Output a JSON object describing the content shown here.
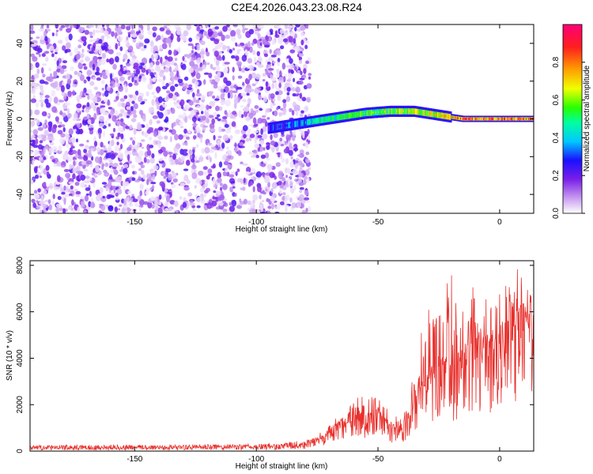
{
  "title": "C2E4.2026.043.23.08.R24",
  "colorbar": {
    "label": "Normalized spectral amplitude",
    "ticks": [
      "0.0",
      "0.2",
      "0.4",
      "0.6",
      "0.8"
    ]
  },
  "chart_data": [
    {
      "type": "heatmap",
      "xlabel": "Height of straight line (km)",
      "ylabel": "Frequency (Hz)",
      "xlim": [
        -193,
        14
      ],
      "ylim": [
        -50,
        50
      ],
      "x_ticks": [
        "-150",
        "-100",
        "-50",
        "0"
      ],
      "y_ticks": [
        "-40",
        "-20",
        "0",
        "20",
        "40"
      ],
      "colormap": "purple-blue-cyan-green-yellow-red-magenta",
      "noise_region_x": [
        -193,
        -78
      ],
      "signal_trace": {
        "x": [
          -95,
          -85,
          -75,
          -65,
          -55,
          -45,
          -35,
          -25,
          -15,
          -5,
          5,
          14
        ],
        "frequency_hz": [
          -5,
          -3,
          -1,
          1,
          3,
          4,
          4,
          2,
          0,
          0,
          0,
          0
        ],
        "amplitude": [
          0.2,
          0.3,
          0.5,
          0.55,
          0.6,
          0.65,
          0.7,
          0.75,
          0.9,
          0.9,
          0.9,
          0.85
        ]
      }
    },
    {
      "type": "line",
      "xlabel": "Height of straight line (km)",
      "ylabel": "SNR (10 * v/v)",
      "xlim": [
        -193,
        14
      ],
      "ylim": [
        0,
        8200
      ],
      "x_ticks": [
        "-150",
        "-100",
        "-50",
        "0"
      ],
      "y_ticks": [
        "0",
        "2000",
        "4000",
        "6000",
        "8000"
      ],
      "color": "#e8302c",
      "series": [
        {
          "name": "SNR",
          "x": [
            -193,
            -180,
            -160,
            -140,
            -120,
            -100,
            -90,
            -80,
            -75,
            -70,
            -65,
            -60,
            -55,
            -50,
            -45,
            -40,
            -35,
            -30,
            -25,
            -20,
            -15,
            -10,
            -5,
            0,
            5,
            10,
            14
          ],
          "y_base": [
            150,
            150,
            160,
            160,
            170,
            180,
            200,
            280,
            450,
            750,
            1100,
            1300,
            1400,
            1500,
            900,
            800,
            1900,
            2800,
            3300,
            3100,
            3600,
            3900,
            3900,
            4300,
            4600,
            5100,
            5200
          ],
          "y_max": [
            300,
            300,
            320,
            320,
            330,
            340,
            400,
            500,
            700,
            1100,
            1700,
            2200,
            2600,
            3000,
            1700,
            1400,
            3600,
            6400,
            7800,
            7700,
            6900,
            7100,
            7400,
            8000,
            8200,
            7500,
            6700
          ]
        }
      ]
    }
  ]
}
